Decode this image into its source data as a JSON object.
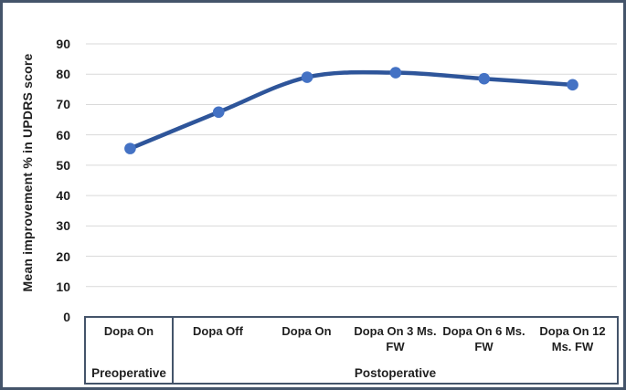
{
  "figure": {
    "background": "#ffffff",
    "border_color": "#44546a"
  },
  "colors": {
    "line": "#2e559a",
    "marker": "#4472c4",
    "gridline": "#d9d9d9",
    "table_border": "#44546a",
    "text": "#1f1f1f"
  },
  "chart_data": {
    "type": "line",
    "title": "",
    "xlabel": "",
    "ylabel": "Mean improvement % in UPDRS score",
    "ylim": [
      0,
      90
    ],
    "yticks": [
      0,
      10,
      20,
      30,
      40,
      50,
      60,
      70,
      80,
      90
    ],
    "grid": "horizontal",
    "legend": "none",
    "categories": [
      "Dopa On",
      "Dopa Off",
      "Dopa On",
      "Dopa On 3 Ms. FW",
      "Dopa On 6 Ms. FW",
      "Dopa On 12 Ms. FW"
    ],
    "category_label_lines": [
      [
        "Dopa On"
      ],
      [
        "Dopa Off"
      ],
      [
        "Dopa On"
      ],
      [
        "Dopa On 3 Ms.",
        "FW"
      ],
      [
        "Dopa On 6 Ms.",
        "FW"
      ],
      [
        "Dopa On 12",
        "Ms. FW"
      ]
    ],
    "category_groups": [
      {
        "label": "Preoperative",
        "span": 1
      },
      {
        "label": "Postoperative",
        "span": 5
      }
    ],
    "series": [
      {
        "name": "Mean improvement % in UPDRS score",
        "values": [
          55.5,
          67.5,
          79,
          80.5,
          78.5,
          76.5
        ],
        "smooth": true,
        "markers": "circle"
      }
    ]
  }
}
